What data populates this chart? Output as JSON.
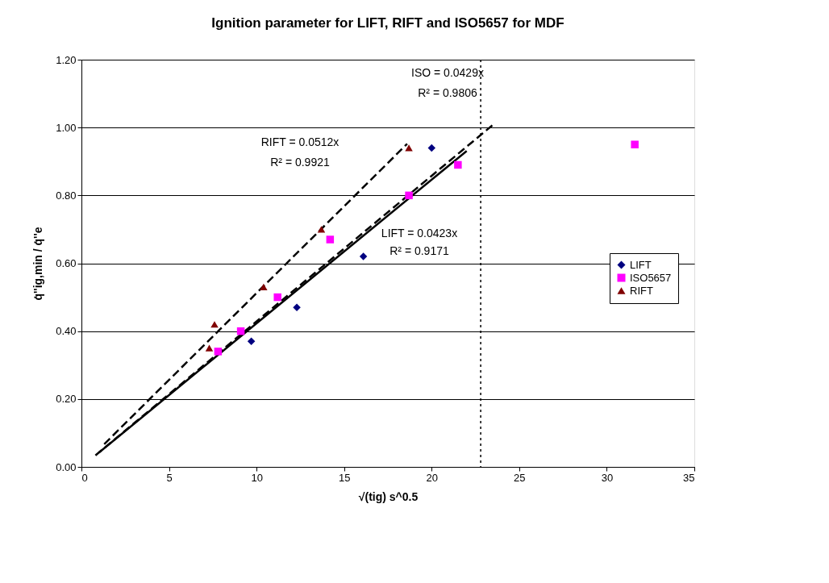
{
  "chart_data": {
    "type": "scatter",
    "title": "Ignition parameter for LIFT, RIFT and ISO5657 for MDF",
    "xlabel": "√(tig)  s^0.5",
    "ylabel": "q̇''ig,min / q̇''e",
    "xlim": [
      0,
      35
    ],
    "xticks": [
      0,
      5,
      10,
      15,
      20,
      25,
      30,
      35
    ],
    "ylim": [
      0,
      1.2
    ],
    "yticks": [
      {
        "value": 0,
        "label": "0.00"
      },
      {
        "value": 0.2,
        "label": "0.20"
      },
      {
        "value": 0.4,
        "label": "0.40"
      },
      {
        "value": 0.6,
        "label": "0.60"
      },
      {
        "value": 0.8,
        "label": "0.80"
      },
      {
        "value": 1.0,
        "label": "1.00"
      },
      {
        "value": 1.2,
        "label": "1.20"
      }
    ],
    "grid": "y",
    "legend": "right",
    "series": [
      {
        "name": "LIFT",
        "type": "scatter",
        "marker": "diamond",
        "color": "#000080",
        "x": [
          9.7,
          12.3,
          16.1,
          20.0
        ],
        "values": [
          0.37,
          0.47,
          0.62,
          0.94
        ]
      },
      {
        "name": "ISO5657",
        "type": "scatter",
        "marker": "square",
        "color": "#ff00ff",
        "x": [
          7.8,
          9.1,
          11.2,
          14.2,
          18.7,
          21.5,
          31.6
        ],
        "values": [
          0.34,
          0.4,
          0.5,
          0.67,
          0.8,
          0.89,
          0.95
        ]
      },
      {
        "name": "RIFT",
        "type": "scatter",
        "marker": "triangle",
        "color": "#800000",
        "x": [
          7.3,
          7.6,
          10.4,
          13.7,
          18.7
        ],
        "values": [
          0.35,
          0.42,
          0.53,
          0.7,
          0.94
        ]
      },
      {
        "type": "line",
        "line_style": "solid",
        "color": "#000000",
        "x": [
          1.0,
          22.0
        ],
        "values": [
          0.042,
          0.931
        ]
      },
      {
        "type": "line",
        "line_style": "dashed",
        "color": "#000000",
        "x": [
          0.8,
          23.5
        ],
        "values": [
          0.034,
          1.008
        ]
      },
      {
        "type": "line",
        "line_style": "dashed",
        "color": "#000000",
        "x": [
          1.3,
          18.6
        ],
        "values": [
          0.067,
          0.952
        ]
      }
    ],
    "ref_lines": [
      {
        "axis": "x",
        "value": 22.8,
        "line_style": "dotted",
        "color": "#000000"
      }
    ],
    "annotations": [
      "ISO = 0.0429x",
      "R² = 0.9806",
      "RIFT = 0.0512x",
      "R² = 0.9921",
      "LIFT = 0.0423x",
      "R² = 0.9171"
    ]
  }
}
